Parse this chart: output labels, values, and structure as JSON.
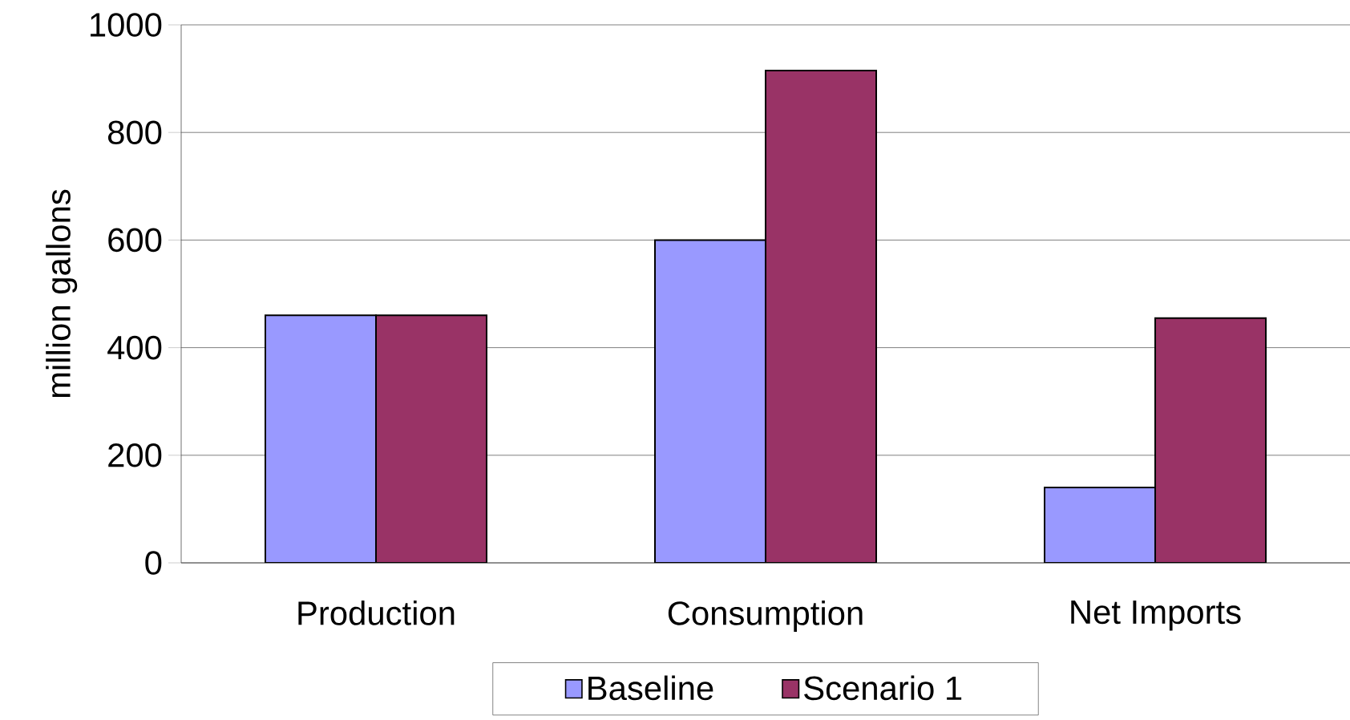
{
  "chart_data": {
    "type": "bar",
    "ylabel": "million gallons",
    "categories": [
      "Production",
      "Consumption",
      "Net Imports"
    ],
    "series": [
      {
        "name": "Baseline",
        "color": "#9999ff",
        "values": [
          460,
          600,
          140
        ]
      },
      {
        "name": "Scenario 1",
        "color": "#993366",
        "values": [
          460,
          915,
          455
        ]
      }
    ],
    "ylim": [
      0,
      1000
    ],
    "yticks": [
      0,
      200,
      400,
      600,
      800,
      1000
    ],
    "grid": "y",
    "legend": "bottom"
  }
}
